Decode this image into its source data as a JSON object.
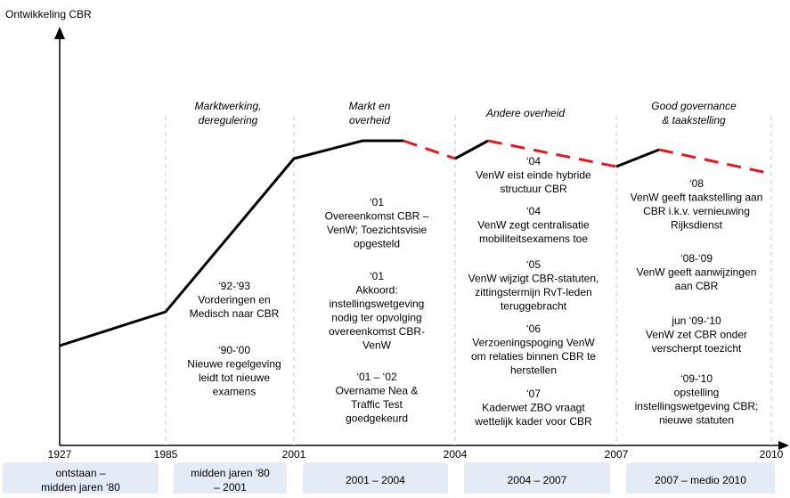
{
  "title": "Ontwikkeling CBR",
  "years": [
    "1927",
    "1985",
    "2001",
    "2004",
    "2007",
    "2010"
  ],
  "periods": [
    [
      "Marktwerking,",
      "deregulering"
    ],
    [
      "Markt en",
      "overheid"
    ],
    [
      "Andere overheid"
    ],
    [
      "Good governance",
      "& taakstelling"
    ]
  ],
  "phases": [
    [
      "ontstaan –",
      "midden jaren ‘80"
    ],
    [
      "midden jaren ‘80",
      "– 2001"
    ],
    [
      "2001 – 2004"
    ],
    [
      "2004 – 2007"
    ],
    [
      "2007 – medio 2010"
    ]
  ],
  "columns": [
    [
      [
        "‘92-‘93",
        "Vorderingen en",
        "Medisch naar CBR"
      ],
      [
        "‘90-‘00",
        "Nieuwe regelgeving",
        "leidt tot nieuwe",
        "examens"
      ]
    ],
    [
      [
        "‘01",
        "Overeenkomst CBR –",
        "VenW; Toezichtsvisie",
        "opgesteld"
      ],
      [
        "‘01",
        "Akkoord:",
        "instellingswetgeving",
        "nodig ter opvolging",
        "overeenkomst CBR-",
        "VenW"
      ],
      [
        "‘01 – ‘02",
        "Overname Nea &",
        "Traffic Test",
        "goedgekeurd"
      ]
    ],
    [
      [
        "‘04",
        "VenW eist einde hybride",
        "structuur CBR"
      ],
      [
        "‘04",
        "VenW zegt centralisatie",
        "mobiliteitsexamens toe"
      ],
      [
        "‘05",
        "VenW wijzigt CBR-statuten,",
        "zittingstermijn RvT-leden",
        "teruggebracht"
      ],
      [
        "‘06",
        "Verzoeningspoging VenW",
        "om relaties binnen CBR te",
        "herstellen"
      ],
      [
        "‘07",
        "Kaderwet ZBO vraagt",
        "wettelijk kader voor CBR"
      ]
    ],
    [
      [
        "‘08",
        "VenW geeft taakstelling aan",
        "CBR i.k.v. vernieuwing",
        "Rijksdienst"
      ],
      [
        "‘08-‘09",
        "VenW geeft aanwijzingen",
        "aan CBR"
      ],
      [
        "jun ‘09-‘10",
        "VenW zet CBR onder",
        "verscherpt toezicht"
      ],
      [
        "‘09-‘10",
        "opstelling",
        "instellingswetgeving CBR;",
        "nieuwe statuten"
      ]
    ]
  ]
}
